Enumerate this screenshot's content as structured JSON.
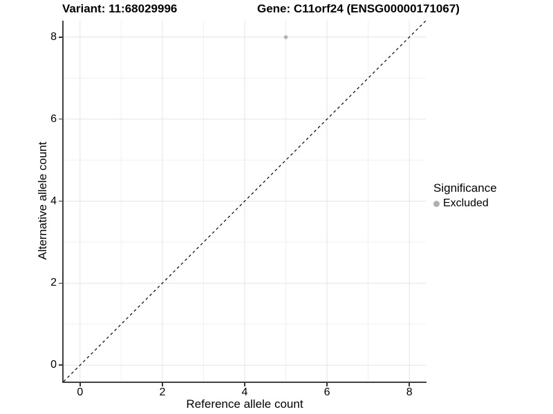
{
  "chart_data": {
    "type": "scatter",
    "title_left": "Variant: 11:68029996",
    "title_right": "Gene: C11orf24 (ENSG00000171067)",
    "xlabel": "Reference allele count",
    "ylabel": "Alternative allele count",
    "xlim": [
      -0.4,
      8.4
    ],
    "ylim": [
      -0.4,
      8.4
    ],
    "xticks": [
      0,
      2,
      4,
      6,
      8
    ],
    "yticks": [
      0,
      2,
      4,
      6,
      8
    ],
    "xticks_minor": [
      1,
      3,
      5,
      7
    ],
    "yticks_minor": [
      1,
      3,
      5,
      7
    ],
    "grid": true,
    "points": [
      {
        "x": 5,
        "y": 8,
        "series": "Excluded",
        "color": "#b2b2b2"
      }
    ],
    "reference_line": {
      "slope": 1,
      "intercept": 0,
      "style": "dashed",
      "color": "#000000"
    },
    "legend": {
      "title": "Significance",
      "position": "right",
      "entries": [
        {
          "label": "Excluded",
          "color": "#b0b0b0"
        }
      ]
    }
  },
  "colors": {
    "background": "#ffffff",
    "text": "#000000",
    "axis_line": "#404040",
    "tick": "#333333",
    "grid_major": "#e4e4e4",
    "grid_minor": "#f0f0f0",
    "point": "#b2b2b2"
  }
}
